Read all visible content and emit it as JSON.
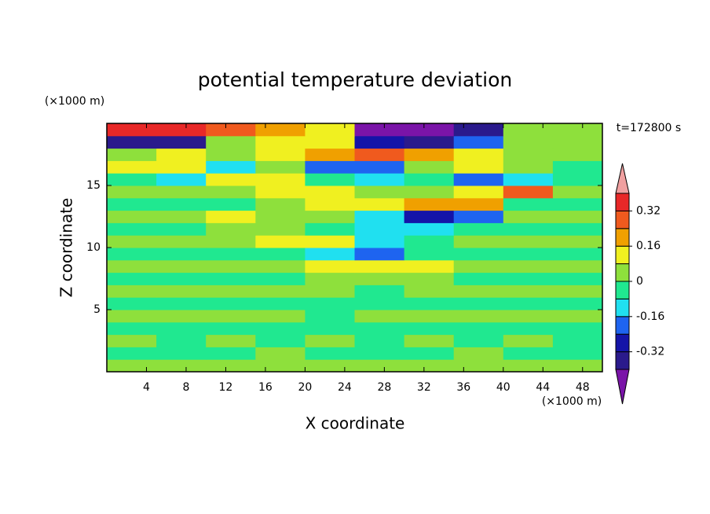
{
  "chart_data": {
    "type": "contour",
    "title": "potential temperature deviation",
    "x_label": "X coordinate",
    "y_label": "Z coordinate",
    "x_units": "(×1000 m)",
    "y_units": "(×1000 m)",
    "annotation": "t=172800 s",
    "x_edges": [
      0,
      5,
      10,
      15,
      20,
      25,
      30,
      35,
      40,
      45,
      50
    ],
    "y_edges": [
      0,
      1,
      2,
      3,
      4,
      5,
      6,
      7,
      8,
      9,
      10,
      11,
      12,
      13,
      14,
      15,
      16,
      17,
      18,
      19,
      20
    ],
    "z": [
      [
        0.04,
        0.04,
        0.04,
        0.04,
        0.04,
        0.04,
        0.04,
        0.04,
        0.04,
        0.04
      ],
      [
        -0.04,
        -0.04,
        -0.04,
        0.04,
        -0.04,
        -0.04,
        -0.04,
        0.04,
        -0.04,
        -0.04
      ],
      [
        0.04,
        -0.04,
        0.04,
        -0.04,
        0.04,
        -0.04,
        0.04,
        -0.04,
        0.04,
        -0.04
      ],
      [
        -0.04,
        -0.04,
        -0.04,
        -0.04,
        -0.04,
        -0.04,
        -0.04,
        -0.04,
        -0.04,
        -0.04
      ],
      [
        0.04,
        0.04,
        0.04,
        0.04,
        -0.04,
        0.04,
        0.04,
        0.04,
        0.04,
        0.04
      ],
      [
        -0.04,
        -0.04,
        -0.04,
        -0.04,
        -0.04,
        -0.04,
        -0.04,
        -0.04,
        -0.04,
        -0.04
      ],
      [
        0.04,
        0.04,
        0.04,
        0.04,
        0.04,
        -0.04,
        0.04,
        0.04,
        0.04,
        0.04
      ],
      [
        -0.04,
        -0.04,
        -0.04,
        -0.04,
        0.04,
        0.04,
        0.04,
        -0.04,
        -0.04,
        -0.04
      ],
      [
        0.04,
        0.04,
        0.04,
        0.04,
        0.12,
        0.12,
        0.12,
        0.04,
        0.04,
        0.04
      ],
      [
        -0.04,
        -0.04,
        -0.04,
        -0.04,
        -0.12,
        -0.2,
        -0.04,
        -0.04,
        -0.04,
        -0.04
      ],
      [
        0.04,
        0.04,
        0.04,
        0.12,
        0.12,
        -0.12,
        -0.04,
        0.04,
        0.04,
        0.04
      ],
      [
        -0.04,
        -0.04,
        0.04,
        0.04,
        -0.04,
        -0.12,
        -0.12,
        -0.04,
        -0.04,
        -0.04
      ],
      [
        0.04,
        0.04,
        0.12,
        0.04,
        0.04,
        -0.12,
        -0.28,
        -0.2,
        0.04,
        0.04
      ],
      [
        -0.04,
        -0.04,
        -0.04,
        0.04,
        0.12,
        0.12,
        0.2,
        0.2,
        -0.04,
        -0.04
      ],
      [
        0.04,
        0.04,
        0.04,
        0.12,
        0.12,
        0.04,
        0.04,
        0.12,
        0.28,
        0.04
      ],
      [
        -0.04,
        -0.12,
        0.12,
        0.12,
        -0.04,
        -0.12,
        -0.04,
        -0.2,
        -0.12,
        -0.04
      ],
      [
        0.12,
        0.12,
        -0.12,
        0.04,
        -0.2,
        -0.2,
        0.04,
        0.12,
        0.04,
        -0.04
      ],
      [
        0.04,
        0.12,
        0.04,
        0.12,
        0.2,
        0.28,
        0.2,
        0.12,
        0.04,
        0.04
      ],
      [
        -0.36,
        -0.36,
        0.04,
        0.12,
        0.12,
        -0.28,
        -0.36,
        -0.2,
        0.04,
        0.04
      ],
      [
        0.36,
        0.36,
        0.28,
        0.2,
        0.12,
        -0.44,
        -0.44,
        -0.36,
        0.04,
        0.04
      ]
    ],
    "xlim": [
      0,
      50
    ],
    "ylim": [
      0,
      20
    ],
    "xticks": [
      4,
      8,
      12,
      16,
      20,
      24,
      28,
      32,
      36,
      40,
      44,
      48
    ],
    "yticks": [
      5,
      10,
      15
    ],
    "levels": [
      -0.4,
      -0.32,
      -0.24,
      -0.16,
      -0.08,
      0,
      0.08,
      0.16,
      0.24,
      0.32,
      0.4
    ],
    "colors": [
      "#7a14a8",
      "#2a1a8c",
      "#1414a8",
      "#1e64f0",
      "#20e0f0",
      "#20e890",
      "#8ee03c",
      "#f0f020",
      "#f0a000",
      "#f05a1e",
      "#e82828",
      "#f0a0a0"
    ],
    "colorbar_ticks": [
      -0.32,
      -0.16,
      0,
      0.16,
      0.32
    ]
  }
}
